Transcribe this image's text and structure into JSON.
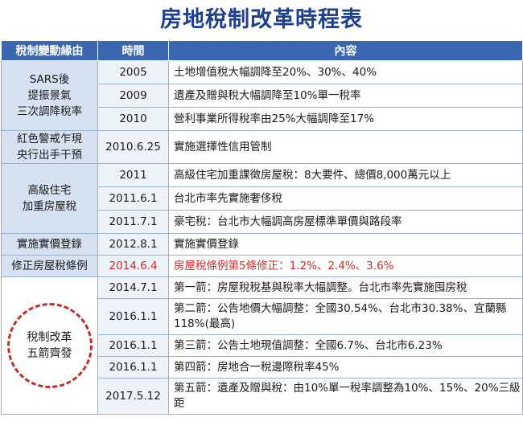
{
  "title": "房地稅制改革時程表",
  "headers": [
    "稅制變動緣由",
    "時間",
    "內容"
  ],
  "groups": [
    {
      "reason": "SARS後\n提振景氣\n三次調降稅率",
      "rows": [
        {
          "time": "2005",
          "content": "土地增值稅大幅調降至20%、30%、40%"
        },
        {
          "time": "2009",
          "content": "遺產及贈與稅大幅調降至10%單一稅率"
        },
        {
          "time": "2010",
          "content": "營利事業所得稅率由25%大幅調降至17%"
        }
      ]
    },
    {
      "reason": "紅色警戒乍現\n央行出手干預",
      "rows": [
        {
          "time": "2010.6.25",
          "content": "實施選擇性信用管制"
        }
      ]
    },
    {
      "reason": "高級住宅\n加重房屋稅",
      "rows": [
        {
          "time": "2011",
          "content": "高級住宅加重課徵房屋稅：8大要件、總價8,000萬元以上"
        },
        {
          "time": "2011.6.1",
          "content": "台北市率先實施奢侈稅"
        },
        {
          "time": "2011.7.1",
          "content": "豪宅稅：台北市大幅調高房屋標準單價與路段率"
        }
      ]
    },
    {
      "reason": "實施實價登錄",
      "rows": [
        {
          "time": "2012.8.1",
          "content": "實施實價登錄"
        }
      ]
    },
    {
      "reason": "修正房屋稅條例",
      "rows": [
        {
          "time": "2014.6.4",
          "content": "房屋稅條例第5條修正：1.2%、2.4%、3.6%"
        }
      ]
    },
    {
      "reason": "稅制改革\n五箭齊發",
      "rows": [
        {
          "time": "2014.7.1",
          "content": "第一箭：房屋稅稅基與稅率大幅調整。台北市率先實施囤房稅"
        },
        {
          "time": "2016.1.1",
          "content": "第二箭：公告地價大幅調整：全國30.54%、台北市30.38%、宜蘭縣118%(最高)"
        },
        {
          "time": "2016.1.1",
          "content": "第三箭：公告土地現值調整：全國6.7%、台北市6.23%"
        },
        {
          "time": "2016.1.1",
          "content": "第四箭：房地合一稅邊際稅率45%"
        },
        {
          "time": "2017.5.12",
          "content": "第五箭：遺產及贈與稅：由10%單一稅率調整為10%、15%、20%三級距"
        }
      ]
    }
  ],
  "colors": {
    "title": "#1f3f8f",
    "header_bg": "#3a67b0",
    "reason_bg": "#d6e1f1",
    "highlight": "#d22a2a",
    "circle": "#c0302a"
  }
}
